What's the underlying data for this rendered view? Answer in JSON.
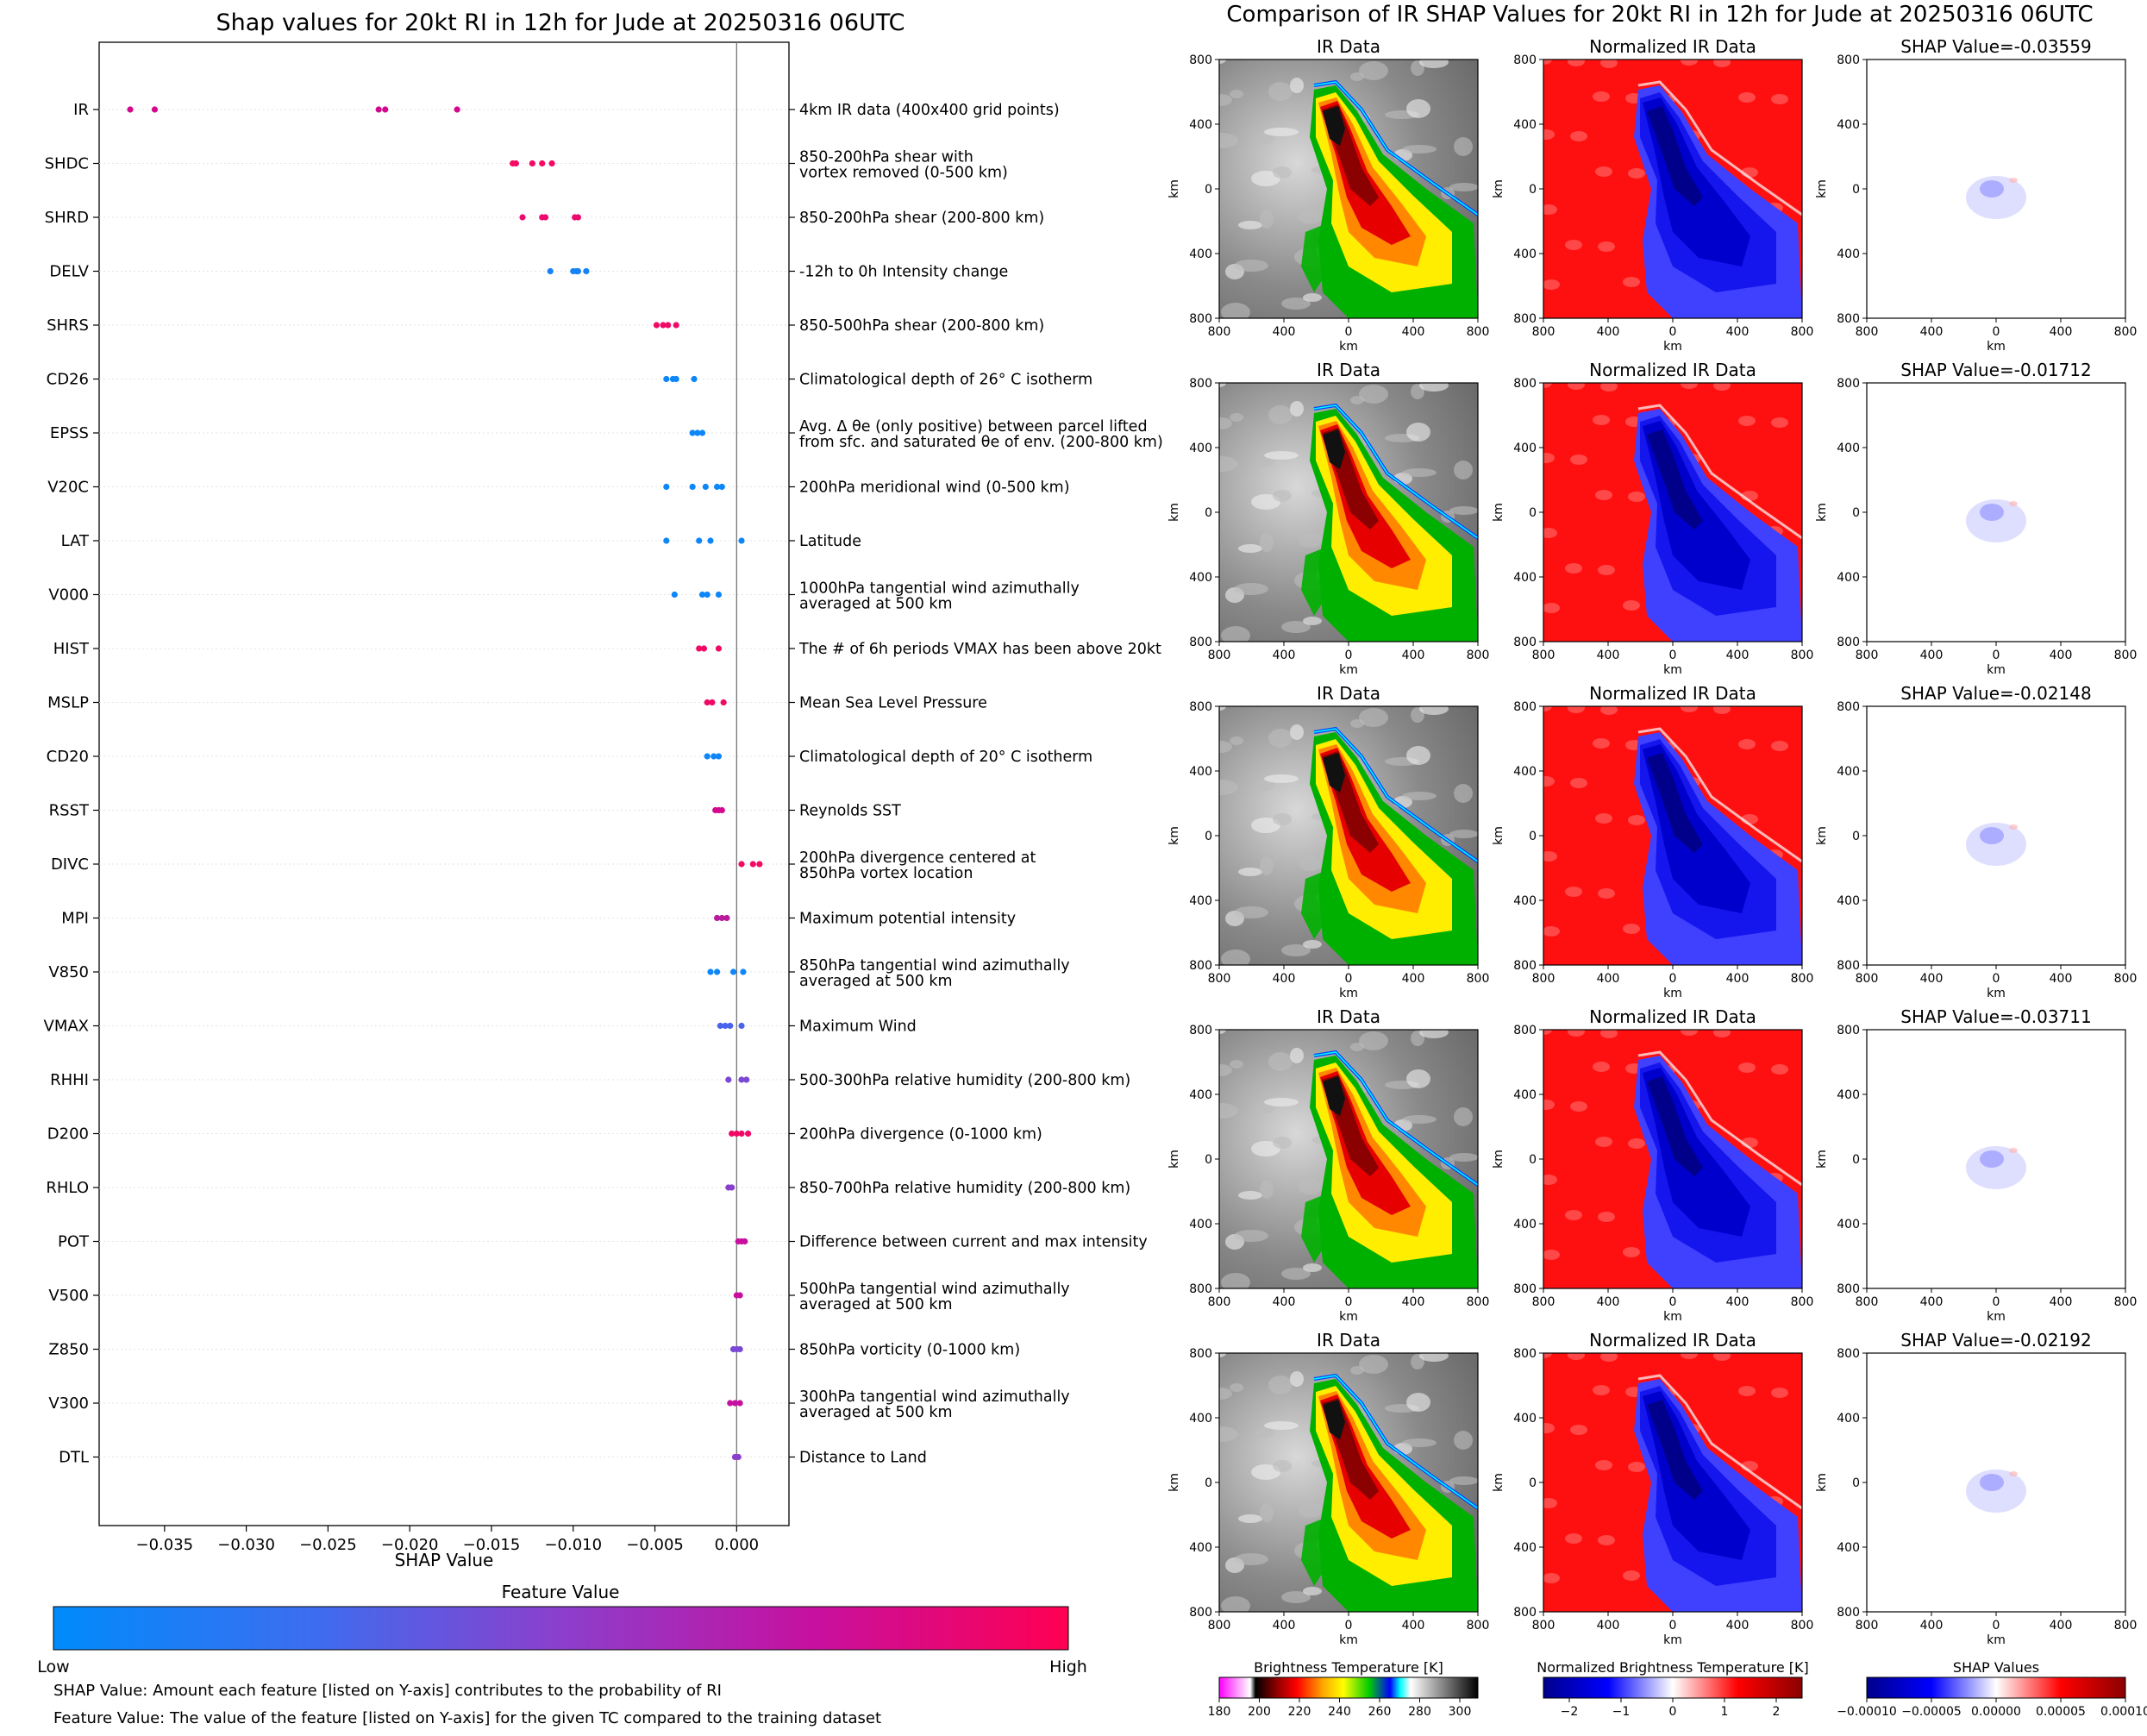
{
  "left_title": "Shap values for 20kt RI in 12h for Jude at 20250316 06UTC",
  "right_title": "Comparison of IR SHAP Values for 20kt RI in 12h for Jude at 20250316 06UTC",
  "colorbar": {
    "title": "Feature Value",
    "low": "Low",
    "high": "High",
    "colors": [
      "#008bfb",
      "#3b6ef0",
      "#8c3fcc",
      "#c7109f",
      "#ff0052"
    ]
  },
  "notes": [
    "SHAP Value: Amount each feature [listed on Y-axis] contributes to the probability of RI",
    "Feature Value: The value of the feature [listed on Y-axis] for the given TC compared to the training dataset"
  ],
  "panel_titles": [
    "IR Data",
    "Normalized IR Data"
  ],
  "shap_titles": [
    "SHAP Value=-0.03559",
    "SHAP Value=-0.01712",
    "SHAP Value=-0.02148",
    "SHAP Value=-0.03711",
    "SHAP Value=-0.02192"
  ],
  "panel_axes": {
    "label": "km",
    "ticks": [
      "800",
      "400",
      "0",
      "400",
      "800"
    ]
  },
  "bottom_colorbars": [
    {
      "title": "Brightness Temperature [K]",
      "ticks": [
        "180",
        "200",
        "220",
        "240",
        "260",
        "280",
        "300"
      ]
    },
    {
      "title": "Normalized Brightness Temperature [K]",
      "ticks": [
        "−2",
        "−1",
        "0",
        "1",
        "2"
      ]
    },
    {
      "title": "SHAP Values",
      "ticks": [
        "−0.00010",
        "−0.00005",
        "0.00000",
        "0.00005",
        "0.00010"
      ]
    }
  ],
  "chart_data": {
    "type": "scatter",
    "title": "Shap values for 20kt RI in 12h for Jude at 20250316 06UTC",
    "xlabel": "SHAP Value",
    "xlim": [
      -0.039,
      0.0032
    ],
    "xticks": [
      "−0.035",
      "−0.030",
      "−0.025",
      "−0.020",
      "−0.015",
      "−0.010",
      "−0.005",
      "0.000"
    ],
    "xtick_values": [
      -0.035,
      -0.03,
      -0.025,
      -0.02,
      -0.015,
      -0.01,
      -0.005,
      0.0
    ],
    "features": [
      {
        "name": "IR",
        "desc": [
          "4km IR data (400x400 grid points)"
        ],
        "shap": [
          -0.0371,
          -0.0356,
          -0.0215,
          -0.0219,
          -0.0171
        ],
        "color": "#d4088e"
      },
      {
        "name": "SHDC",
        "desc": [
          "850-200hPa shear with",
          "vortex removed (0-500 km)"
        ],
        "shap": [
          -0.0137,
          -0.0135,
          -0.0125,
          -0.0119,
          -0.0113
        ],
        "color": "#f40a62"
      },
      {
        "name": "SHRD",
        "desc": [
          "850-200hPa shear (200-800 km)"
        ],
        "shap": [
          -0.0131,
          -0.0119,
          -0.0117,
          -0.0099,
          -0.0097
        ],
        "color": "#ec0a6e"
      },
      {
        "name": "DELV",
        "desc": [
          "-12h to 0h Intensity change"
        ],
        "shap": [
          -0.0114,
          -0.01,
          -0.0098,
          -0.0097,
          -0.0092
        ],
        "color": "#1582f5"
      },
      {
        "name": "SHRS",
        "desc": [
          "850-500hPa shear (200-800 km)"
        ],
        "shap": [
          -0.0049,
          -0.0045,
          -0.0042,
          -0.0037
        ],
        "color": "#f00a66"
      },
      {
        "name": "CD26",
        "desc": [
          "Climatological depth of 26° C isotherm"
        ],
        "shap": [
          -0.0043,
          -0.0039,
          -0.0037,
          -0.0026
        ],
        "color": "#0d86f8"
      },
      {
        "name": "EPSS",
        "desc": [
          "Avg. Δ θe (only positive) between parcel lifted",
          "from sfc. and saturated θe of env. (200-800 km)"
        ],
        "shap": [
          -0.0027,
          -0.0024,
          -0.0021
        ],
        "color": "#0d86f8"
      },
      {
        "name": "V20C",
        "desc": [
          "200hPa meridional wind (0-500 km)"
        ],
        "shap": [
          -0.0043,
          -0.0027,
          -0.0019,
          -0.0012,
          -0.0009
        ],
        "color": "#0d86f8"
      },
      {
        "name": "LAT",
        "desc": [
          "Latitude"
        ],
        "shap": [
          -0.0043,
          -0.0023,
          -0.0016,
          0.0003
        ],
        "color": "#0d86f8"
      },
      {
        "name": "V000",
        "desc": [
          "1000hPa tangential wind azimuthally",
          "averaged at 500 km"
        ],
        "shap": [
          -0.0038,
          -0.0021,
          -0.0018,
          -0.0011
        ],
        "color": "#0d86f8"
      },
      {
        "name": "HIST",
        "desc": [
          "The # of 6h periods VMAX has been above 20kt"
        ],
        "shap": [
          -0.0023,
          -0.002,
          -0.0011
        ],
        "color": "#f00a66"
      },
      {
        "name": "MSLP",
        "desc": [
          "Mean Sea Level Pressure"
        ],
        "shap": [
          -0.0018,
          -0.0015,
          -0.0008
        ],
        "color": "#f00a66"
      },
      {
        "name": "CD20",
        "desc": [
          "Climatological depth of 20° C isotherm"
        ],
        "shap": [
          -0.0018,
          -0.0014,
          -0.0011
        ],
        "color": "#0d86f8"
      },
      {
        "name": "RSST",
        "desc": [
          "Reynolds SST"
        ],
        "shap": [
          -0.0013,
          -0.0011,
          -0.0009
        ],
        "color": "#d4088e"
      },
      {
        "name": "DIVC",
        "desc": [
          "200hPa divergence centered at",
          "850hPa vortex location"
        ],
        "shap": [
          0.0003,
          0.001,
          0.0014
        ],
        "color": "#f40a62"
      },
      {
        "name": "MPI",
        "desc": [
          "Maximum potential intensity"
        ],
        "shap": [
          -0.0012,
          -0.0009,
          -0.0006
        ],
        "color": "#b81a9c"
      },
      {
        "name": "V850",
        "desc": [
          "850hPa tangential wind azimuthally",
          "averaged at 500 km"
        ],
        "shap": [
          -0.0016,
          -0.0012,
          -0.0002,
          0.0004
        ],
        "color": "#0d86f8"
      },
      {
        "name": "VMAX",
        "desc": [
          "Maximum Wind"
        ],
        "shap": [
          -0.001,
          -0.0007,
          -0.0004,
          0.0003
        ],
        "color": "#4a63eb"
      },
      {
        "name": "RHHI",
        "desc": [
          "500-300hPa relative humidity (200-800 km)"
        ],
        "shap": [
          -0.0005,
          0.0003,
          0.0006
        ],
        "color": "#7a48d4"
      },
      {
        "name": "D200",
        "desc": [
          "200hPa divergence (0-1000 km)"
        ],
        "shap": [
          -0.0003,
          0.0,
          0.0003,
          0.0007
        ],
        "color": "#f00a66"
      },
      {
        "name": "RHLO",
        "desc": [
          "850-700hPa relative humidity (200-800 km)"
        ],
        "shap": [
          -0.0005,
          -0.0003
        ],
        "color": "#8a40cc"
      },
      {
        "name": "POT",
        "desc": [
          "Difference between current and max intensity"
        ],
        "shap": [
          0.0001,
          0.0003,
          0.0005
        ],
        "color": "#c7109f"
      },
      {
        "name": "V500",
        "desc": [
          "500hPa tangential wind azimuthally",
          "averaged at 500 km"
        ],
        "shap": [
          -0.0,
          0.0002
        ],
        "color": "#c7109f"
      },
      {
        "name": "Z850",
        "desc": [
          "850hPa vorticity (0-1000 km)"
        ],
        "shap": [
          -0.0002,
          0.0,
          0.0002
        ],
        "color": "#7a48d4"
      },
      {
        "name": "V300",
        "desc": [
          "300hPa tangential wind azimuthally",
          "averaged at 500 km"
        ],
        "shap": [
          -0.0004,
          -0.0001,
          0.0002
        ],
        "color": "#c7109f"
      },
      {
        "name": "DTL",
        "desc": [
          "Distance to Land"
        ],
        "shap": [
          -0.0001,
          0.0001
        ],
        "color": "#8a40cc"
      }
    ]
  }
}
